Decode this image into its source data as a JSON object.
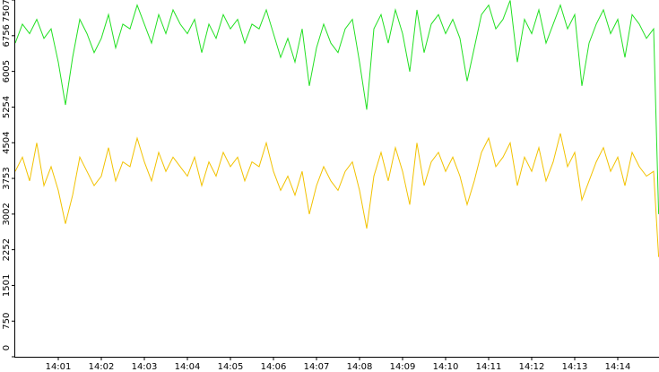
{
  "chart_data": {
    "type": "line",
    "x": [
      "14:00:00",
      "14:00:10",
      "14:00:20",
      "14:00:30",
      "14:00:40",
      "14:00:50",
      "14:01:00",
      "14:01:10",
      "14:01:20",
      "14:01:30",
      "14:01:40",
      "14:01:50",
      "14:02:00",
      "14:02:10",
      "14:02:20",
      "14:02:30",
      "14:02:40",
      "14:02:50",
      "14:03:00",
      "14:03:10",
      "14:03:20",
      "14:03:30",
      "14:03:40",
      "14:03:50",
      "14:04:00",
      "14:04:10",
      "14:04:20",
      "14:04:30",
      "14:04:40",
      "14:04:50",
      "14:05:00",
      "14:05:10",
      "14:05:20",
      "14:05:30",
      "14:05:40",
      "14:05:50",
      "14:06:00",
      "14:06:10",
      "14:06:20",
      "14:06:30",
      "14:06:40",
      "14:06:50",
      "14:07:00",
      "14:07:10",
      "14:07:20",
      "14:07:30",
      "14:07:40",
      "14:07:50",
      "14:08:00",
      "14:08:10",
      "14:08:20",
      "14:08:30",
      "14:08:40",
      "14:08:50",
      "14:09:00",
      "14:09:10",
      "14:09:20",
      "14:09:30",
      "14:09:40",
      "14:09:50",
      "14:10:00",
      "14:10:10",
      "14:10:20",
      "14:10:30",
      "14:10:40",
      "14:10:50",
      "14:11:00",
      "14:11:10",
      "14:11:20",
      "14:11:30",
      "14:11:40",
      "14:11:50",
      "14:12:00",
      "14:12:10",
      "14:12:20",
      "14:12:30",
      "14:12:40",
      "14:12:50",
      "14:13:00",
      "14:13:10",
      "14:13:20",
      "14:13:30",
      "14:13:40",
      "14:13:50",
      "14:14:00",
      "14:14:10",
      "14:14:20",
      "14:14:30",
      "14:14:40",
      "14:14:50",
      "14:14:57"
    ],
    "series": [
      {
        "color": "#22e022",
        "values": [
          6600,
          7000,
          6800,
          7100,
          6700,
          6900,
          6200,
          5300,
          6300,
          7100,
          6800,
          6400,
          6700,
          7200,
          6500,
          7000,
          6900,
          7400,
          7000,
          6600,
          7200,
          6800,
          7300,
          7000,
          6800,
          7100,
          6400,
          7000,
          6700,
          7200,
          6900,
          7100,
          6600,
          7000,
          6900,
          7300,
          6800,
          6300,
          6700,
          6200,
          6900,
          5700,
          6500,
          7000,
          6600,
          6400,
          6900,
          7100,
          6200,
          5200,
          6900,
          7200,
          6600,
          7300,
          6800,
          6000,
          7300,
          6400,
          7000,
          7200,
          6800,
          7100,
          6700,
          5800,
          6500,
          7200,
          7400,
          6900,
          7100,
          7500,
          6200,
          7100,
          6800,
          7300,
          6600,
          7000,
          7400,
          6900,
          7200,
          5700,
          6600,
          7000,
          7300,
          6800,
          7100,
          6300,
          7200,
          7000,
          6700,
          6900,
          3000
        ]
      },
      {
        "color": "#f2c200",
        "values": [
          3900,
          4200,
          3700,
          4500,
          3600,
          4000,
          3500,
          2800,
          3400,
          4200,
          3900,
          3600,
          3800,
          4400,
          3700,
          4100,
          4000,
          4600,
          4100,
          3700,
          4300,
          3900,
          4200,
          4000,
          3800,
          4200,
          3600,
          4100,
          3800,
          4300,
          4000,
          4200,
          3700,
          4100,
          4000,
          4500,
          3900,
          3500,
          3800,
          3400,
          3900,
          3000,
          3600,
          4000,
          3700,
          3500,
          3900,
          4100,
          3500,
          2700,
          3800,
          4300,
          3700,
          4400,
          3900,
          3200,
          4500,
          3600,
          4100,
          4300,
          3900,
          4200,
          3800,
          3200,
          3700,
          4300,
          4600,
          4000,
          4200,
          4500,
          3600,
          4200,
          3900,
          4400,
          3700,
          4100,
          4700,
          4000,
          4300,
          3300,
          3700,
          4100,
          4400,
          3900,
          4200,
          3600,
          4300,
          4000,
          3800,
          3900,
          2100
        ]
      }
    ],
    "xlim": [
      "14:00",
      "14:15"
    ],
    "xticks": [
      "14:01",
      "14:02",
      "14:03",
      "14:04",
      "14:05",
      "14:06",
      "14:07",
      "14:08",
      "14:09",
      "14:10",
      "14:11",
      "14:12",
      "14:13",
      "14:14"
    ],
    "ylim": [
      0,
      7507
    ],
    "yticks": [
      0,
      750,
      1501,
      2252,
      3002,
      3753,
      4504,
      5254,
      6005,
      6756,
      7507
    ]
  }
}
